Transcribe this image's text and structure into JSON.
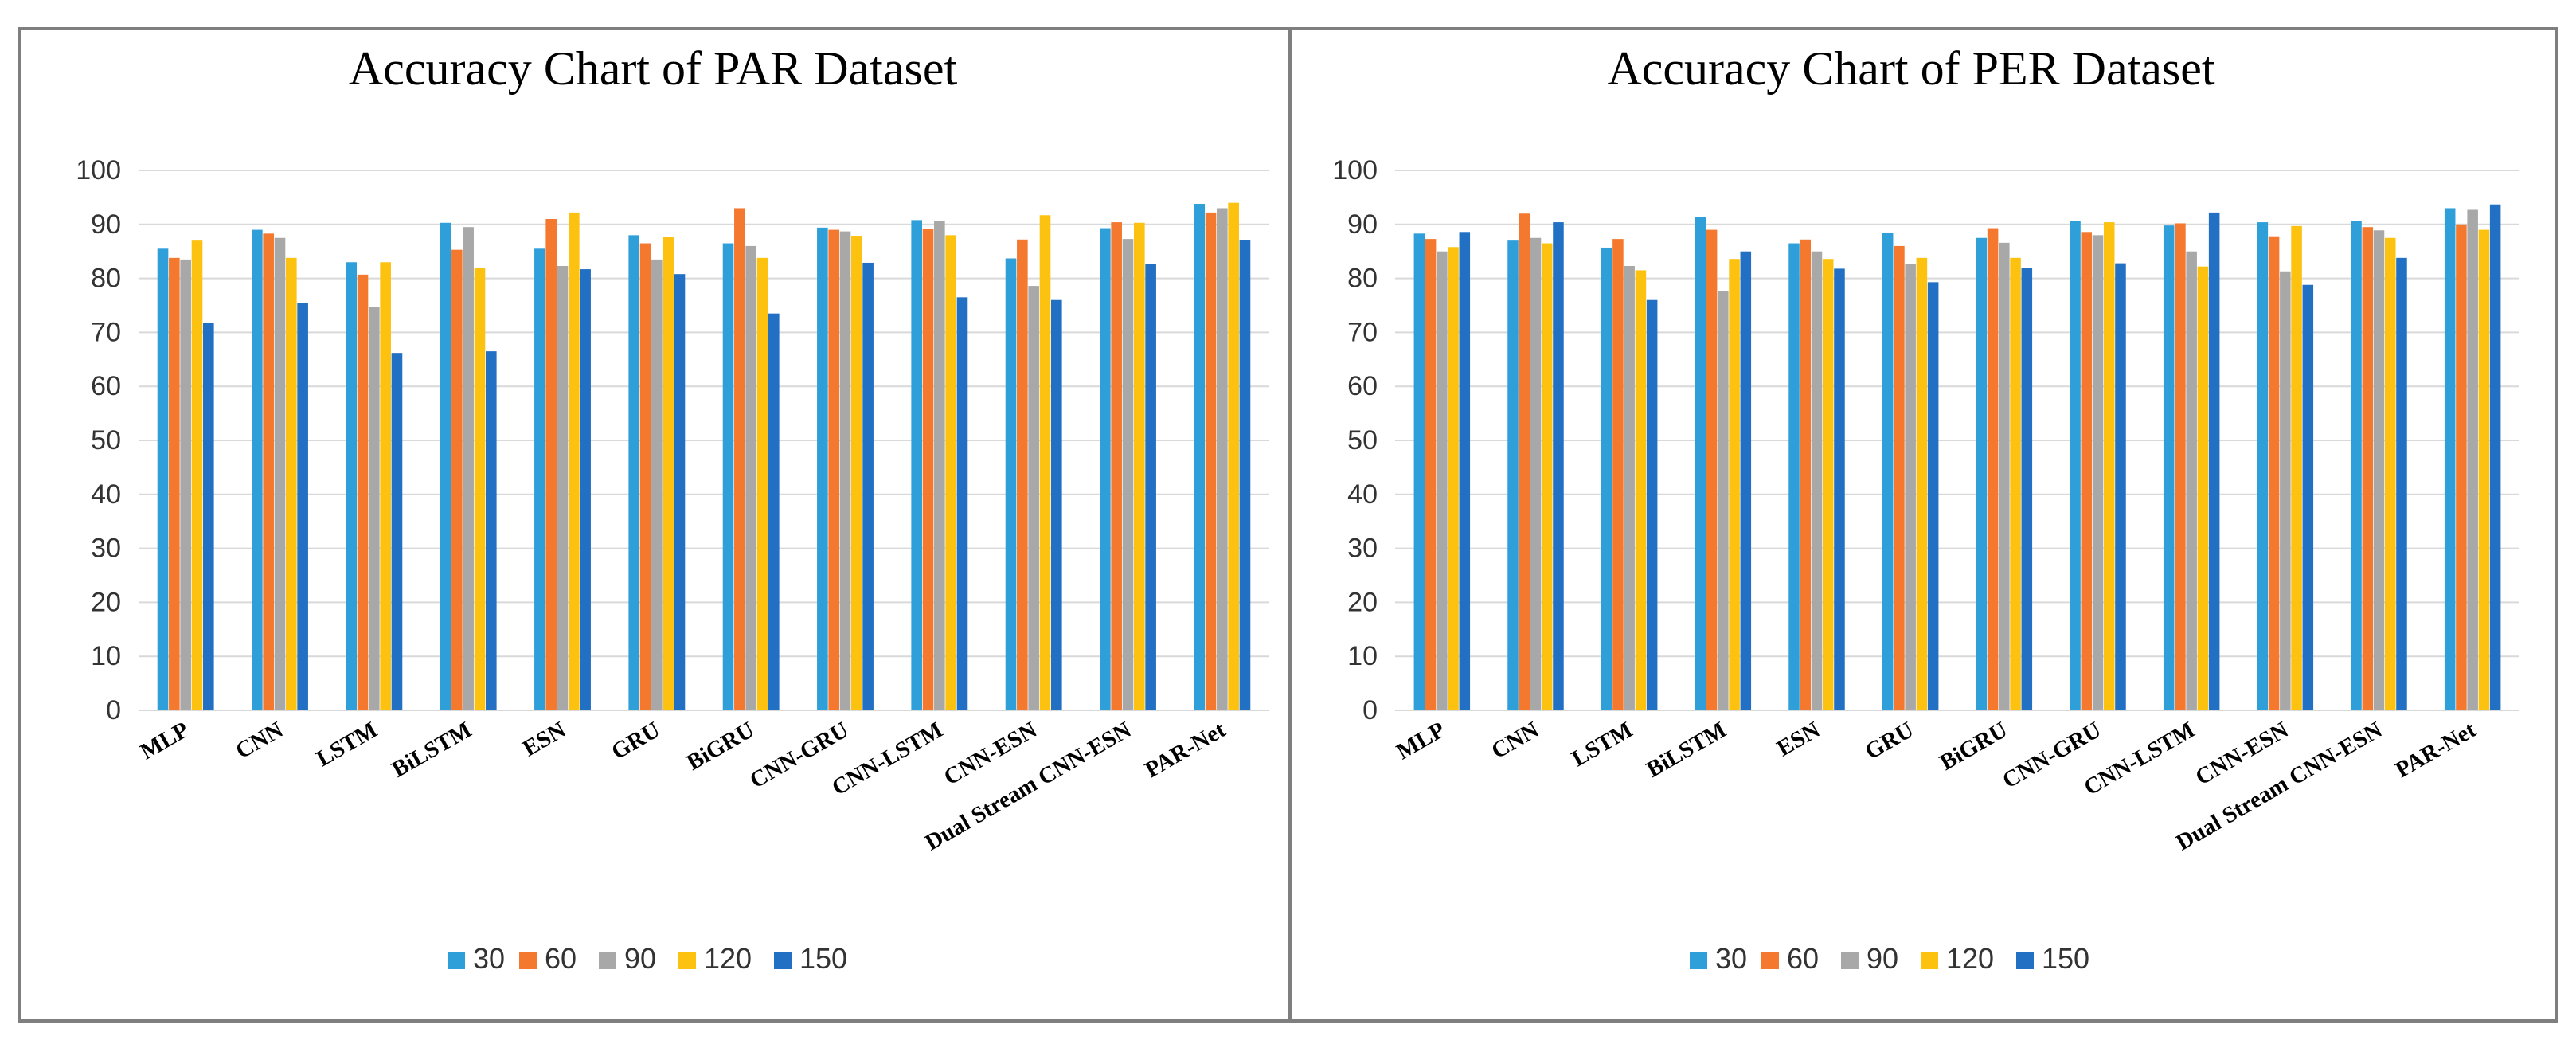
{
  "chart_data": [
    {
      "type": "bar",
      "title": "Accuracy Chart of PAR Dataset",
      "categories": [
        "MLP",
        "CNN",
        "LSTM",
        "BiLSTM",
        "ESN",
        "GRU",
        "BiGRU",
        "CNN-GRU",
        "CNN-LSTM",
        "CNN-ESN",
        "Dual Stream CNN-ESN",
        "PAR-Net"
      ],
      "series": [
        {
          "name": "30",
          "color": "#2e9fd9",
          "values": [
            85.5,
            89,
            83,
            90.3,
            85.5,
            88,
            86.5,
            89.4,
            90.8,
            83.7,
            89.3,
            93.8
          ]
        },
        {
          "name": "60",
          "color": "#f4782e",
          "values": [
            83.8,
            88.3,
            80.7,
            85.3,
            91,
            86.5,
            93,
            89,
            89.2,
            87.2,
            90.4,
            92.2
          ]
        },
        {
          "name": "90",
          "color": "#a8a8a8",
          "values": [
            83.5,
            87.5,
            74.7,
            89.5,
            82.3,
            83.5,
            86,
            88.7,
            90.6,
            78.6,
            87.3,
            93
          ]
        },
        {
          "name": "120",
          "color": "#fcc20f",
          "values": [
            87,
            83.8,
            83,
            82,
            92.2,
            87.7,
            83.8,
            87.9,
            88,
            91.7,
            90.3,
            94
          ]
        },
        {
          "name": "150",
          "color": "#2170c4",
          "values": [
            71.7,
            75.5,
            66.2,
            66.5,
            81.7,
            80.8,
            73.5,
            82.9,
            76.5,
            76,
            82.7,
            87.1
          ]
        }
      ],
      "yticks": [
        0,
        10,
        20,
        30,
        40,
        50,
        60,
        70,
        80,
        90,
        100
      ],
      "ylim": [
        0,
        100
      ],
      "xlabel": "",
      "ylabel": "",
      "legend_position": "bottom-center"
    },
    {
      "type": "bar",
      "title": "Accuracy Chart of PER Dataset",
      "categories": [
        "MLP",
        "CNN",
        "LSTM",
        "BiLSTM",
        "ESN",
        "GRU",
        "BiGRU",
        "CNN-GRU",
        "CNN-LSTM",
        "CNN-ESN",
        "Dual Stream CNN-ESN",
        "PAR-Net"
      ],
      "series": [
        {
          "name": "30",
          "color": "#2e9fd9",
          "values": [
            88.3,
            87,
            85.7,
            91.3,
            86.5,
            88.5,
            87.5,
            90.6,
            89.8,
            90.4,
            90.6,
            93
          ]
        },
        {
          "name": "60",
          "color": "#f4782e",
          "values": [
            87.3,
            92,
            87.3,
            89,
            87.2,
            86,
            89.3,
            88.6,
            90.2,
            87.8,
            89.5,
            90
          ]
        },
        {
          "name": "90",
          "color": "#a8a8a8",
          "values": [
            85,
            87.5,
            82.3,
            77.7,
            85,
            82.6,
            86.6,
            88,
            85,
            81.3,
            88.9,
            92.7
          ]
        },
        {
          "name": "120",
          "color": "#fcc20f",
          "values": [
            85.8,
            86.5,
            81.5,
            83.6,
            83.6,
            83.8,
            83.8,
            90.4,
            82.2,
            89.7,
            87.5,
            89
          ]
        },
        {
          "name": "150",
          "color": "#2170c4",
          "values": [
            88.6,
            90.4,
            76,
            85,
            81.8,
            79.3,
            82,
            82.8,
            92.2,
            78.8,
            83.8,
            93.7
          ]
        }
      ],
      "yticks": [
        0,
        10,
        20,
        30,
        40,
        50,
        60,
        70,
        80,
        90,
        100
      ],
      "ylim": [
        0,
        100
      ],
      "xlabel": "",
      "ylabel": "",
      "legend_position": "bottom-center"
    }
  ]
}
